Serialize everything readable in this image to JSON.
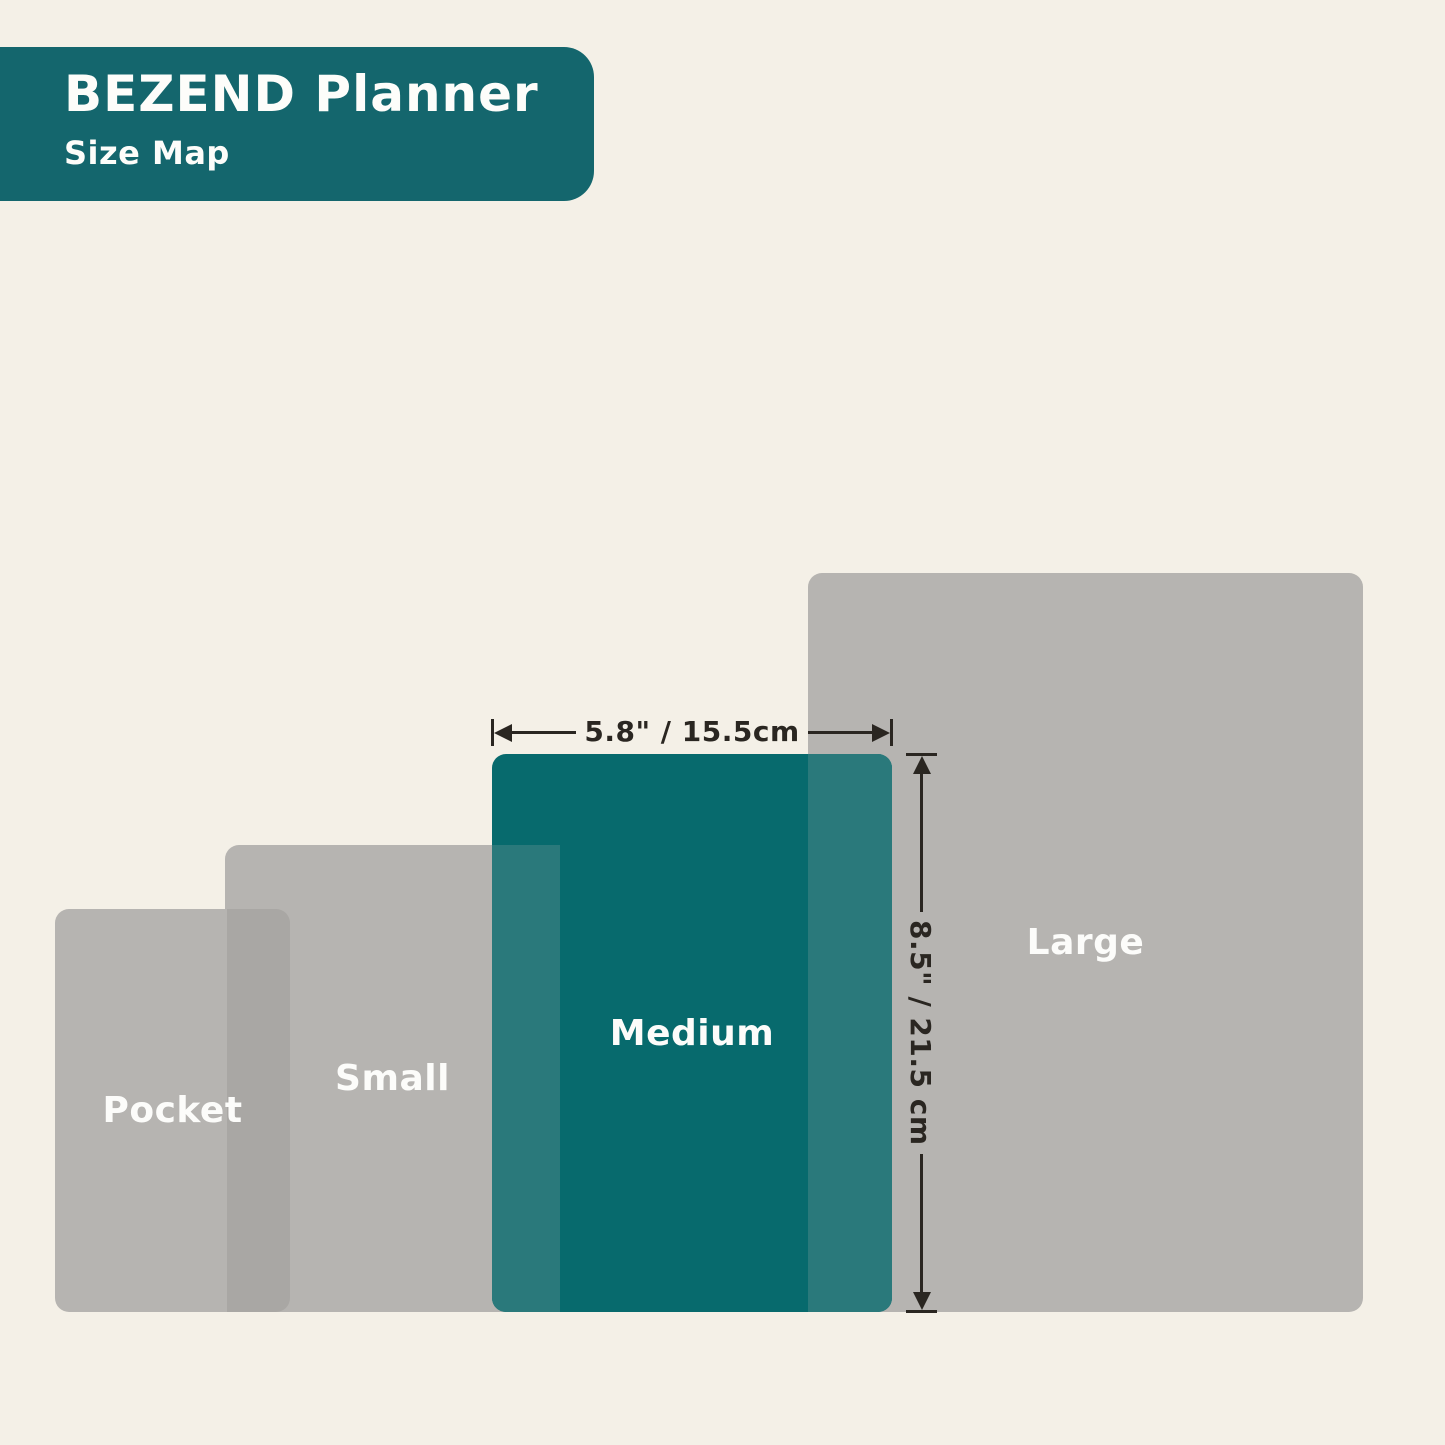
{
  "header": {
    "title": "BEZEND Planner",
    "subtitle": "Size Map"
  },
  "sizes": [
    {
      "label": "Pocket",
      "highlighted": false
    },
    {
      "label": "Small",
      "highlighted": false
    },
    {
      "label": "Medium",
      "highlighted": true,
      "width": "5.8\" / 15.5cm",
      "height": "8.5\" / 21.5 cm"
    },
    {
      "label": "Large",
      "highlighted": false
    }
  ],
  "annotations": {
    "width_label": "5.8\" / 15.5cm",
    "height_label": "8.5\" / 21.5 cm"
  },
  "colors": {
    "background": "#F4F0E7",
    "header_teal": "#14666D",
    "medium_teal": "#076A6D",
    "overlap_teal": "#2A797B",
    "gray": "#B6B4B1",
    "overlap_gray": "#A9A7A4",
    "annotation_ink": "#2A2621",
    "label_text": "#FCFCFA"
  }
}
